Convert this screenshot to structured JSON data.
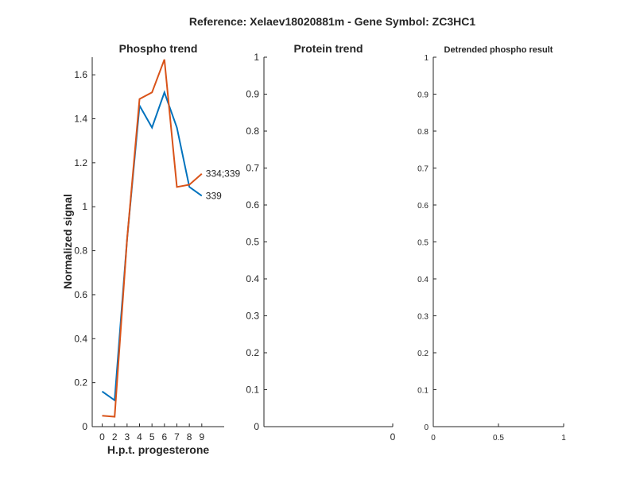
{
  "figure": {
    "suptitle": "Reference:  Xelaev18020881m - Gene Symbol:  ZC3HC1"
  },
  "chart_data": [
    {
      "type": "line",
      "title": "Phospho trend",
      "xlabel": "H.p.t. progesterone",
      "ylabel": "Normalized signal",
      "xlim": [
        -0.8,
        9.8
      ],
      "ylim": [
        0,
        1.68
      ],
      "xticks": [
        0,
        2,
        3,
        4,
        5,
        6,
        7,
        8,
        9
      ],
      "yticks": [
        0,
        0.2,
        0.4,
        0.6,
        0.8,
        1,
        1.2,
        1.4,
        1.6
      ],
      "ytick_labels": [
        "0",
        "0.2",
        "0.4",
        "0.6",
        "0.8",
        "1",
        "1.2",
        "1.4",
        "1.6"
      ],
      "grid": false,
      "x": [
        0,
        1,
        2,
        3,
        4,
        5,
        6,
        7,
        8,
        9
      ],
      "series": [
        {
          "name": "339",
          "color": "#0072BD",
          "values": [
            0.16,
            0.12,
            0.85,
            1.46,
            1.36,
            1.52,
            1.36,
            1.09,
            1.05
          ],
          "x": [
            0,
            1,
            2,
            3,
            4,
            5,
            6,
            7,
            8
          ]
        },
        {
          "name": "334;339",
          "color": "#D95319",
          "values": [
            0.05,
            0.045,
            0.85,
            1.49,
            1.52,
            1.67,
            1.09,
            1.1,
            1.15
          ],
          "x": [
            0,
            1,
            2,
            3,
            4,
            5,
            6,
            7,
            8
          ]
        }
      ]
    },
    {
      "type": "line",
      "title": "Protein trend",
      "xlabel": "",
      "ylabel": "",
      "ylim": [
        0,
        1
      ],
      "xticks": [
        0
      ],
      "xtick_labels": [
        "0"
      ],
      "yticks": [
        0,
        0.1,
        0.2,
        0.3,
        0.4,
        0.5,
        0.6,
        0.7,
        0.8,
        0.9,
        1
      ],
      "ytick_labels": [
        "0",
        "0.1",
        "0.2",
        "0.3",
        "0.4",
        "0.5",
        "0.6",
        "0.7",
        "0.8",
        "0.9",
        "1"
      ],
      "grid": false,
      "series": []
    },
    {
      "type": "line",
      "title": "Detrended phospho result",
      "xlabel": "",
      "ylabel": "",
      "xlim": [
        0,
        1
      ],
      "ylim": [
        0,
        1
      ],
      "xticks": [
        0,
        0.5,
        1
      ],
      "xtick_labels": [
        "0",
        "0.5",
        "1"
      ],
      "yticks": [
        0,
        0.1,
        0.2,
        0.3,
        0.4,
        0.5,
        0.6,
        0.7,
        0.8,
        0.9,
        1
      ],
      "ytick_labels": [
        "0",
        "0.1",
        "0.2",
        "0.3",
        "0.4",
        "0.5",
        "0.6",
        "0.7",
        "0.8",
        "0.9",
        "1"
      ],
      "grid": false,
      "series": []
    }
  ]
}
